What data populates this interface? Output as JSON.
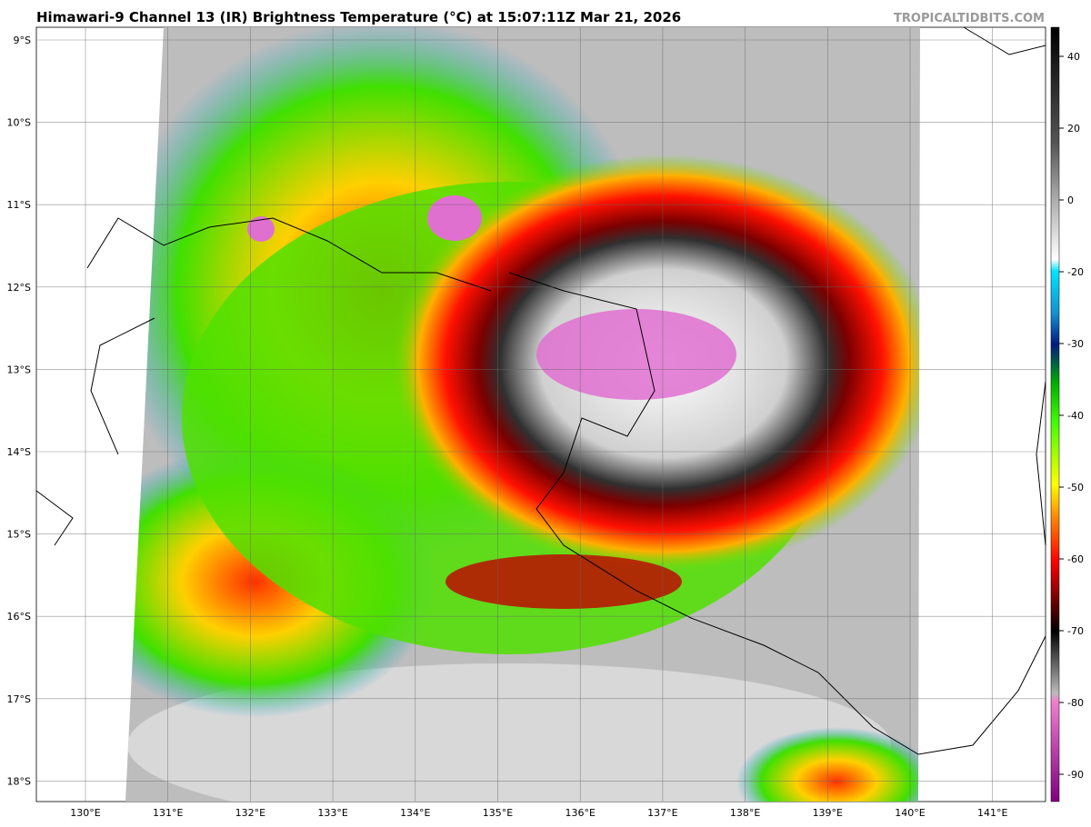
{
  "header": {
    "title": "Himawari-9 Channel 13 (IR) Brightness Temperature (°C) at 15:07:11Z Mar 21, 2026",
    "watermark": "TROPICALTIDBITS.COM"
  },
  "map": {
    "lat_labels": [
      "9°S",
      "10°S",
      "11°S",
      "12°S",
      "13°S",
      "14°S",
      "15°S",
      "16°S",
      "17°S",
      "18°S"
    ],
    "lon_labels": [
      "130°E",
      "131°E",
      "132°E",
      "133°E",
      "134°E",
      "135°E",
      "136°E",
      "137°E",
      "138°E",
      "139°E",
      "140°E",
      "141°E"
    ]
  },
  "colorbar": {
    "ticks": [
      40,
      20,
      0,
      -20,
      -30,
      -40,
      -50,
      -60,
      -70,
      -80,
      -90
    ]
  }
}
